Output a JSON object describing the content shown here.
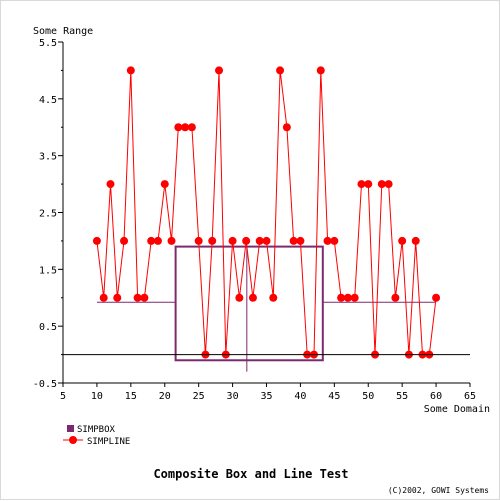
{
  "chart_data": {
    "type": "line",
    "title": "Composite Box and Line Test",
    "copyright": "(C)2002, GOWI Systems",
    "xlabel": "Some Domain",
    "ylabel": "Some Range",
    "xlim": [
      5,
      65
    ],
    "ylim": [
      -0.5,
      5.5
    ],
    "xticks": [
      "5",
      "10",
      "15",
      "20",
      "25",
      "30",
      "35",
      "40",
      "45",
      "50",
      "55",
      "60",
      "65"
    ],
    "yticks": [
      "-0.5",
      "0.5",
      "1.5",
      "2.5",
      "3.5",
      "4.5",
      "5.5"
    ],
    "grid": false,
    "legend": "bottom-left",
    "colors": {
      "box": "#7b2a6f",
      "line": "#ff0000",
      "marker": "#ff0000",
      "zero_line": "#000000"
    },
    "series": [
      {
        "name": "SIMPBOX",
        "type": "box",
        "q1": -0.1,
        "q3": 1.9,
        "median": 0.92,
        "whisker_low": -0.3,
        "whisker_high": 1.9,
        "box_x": [
          21.6,
          43.3
        ],
        "whisker_x": [
          10,
          60
        ],
        "median_x": 32.1
      },
      {
        "name": "SIMPLINE",
        "type": "line",
        "x": [
          10,
          11,
          12,
          13,
          14,
          15,
          16,
          17,
          18,
          19,
          20,
          21,
          22,
          23,
          24,
          25,
          26,
          27,
          28,
          29,
          30,
          31,
          32,
          33,
          34,
          35,
          36,
          37,
          38,
          39,
          40,
          41,
          42,
          43,
          44,
          45,
          46,
          47,
          48,
          49,
          50,
          51,
          52,
          53,
          54,
          55,
          56,
          57,
          58,
          59,
          60
        ],
        "values": [
          2,
          1,
          3,
          1,
          2,
          5,
          1,
          1,
          2,
          2,
          3,
          2,
          4,
          4,
          4,
          2,
          0,
          2,
          5,
          0,
          2,
          1,
          2,
          1,
          2,
          2,
          1,
          5,
          4,
          2,
          2,
          0,
          0,
          5,
          2,
          2,
          1,
          1,
          1,
          3,
          3,
          0,
          3,
          3,
          1,
          2,
          0,
          2,
          0,
          0,
          1
        ]
      }
    ]
  }
}
